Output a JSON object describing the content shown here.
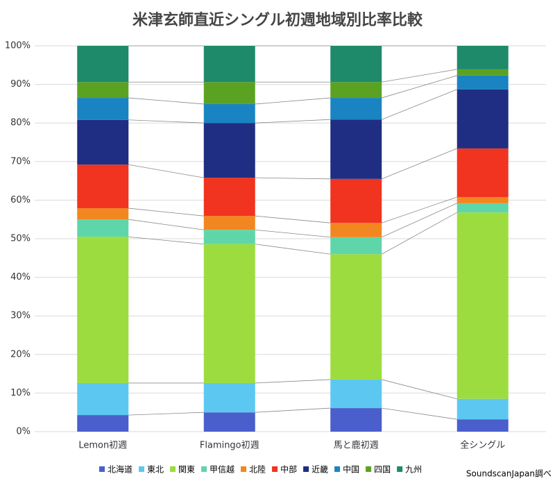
{
  "chart_data": {
    "type": "stacked_bar_100",
    "title": "米津玄師直近シングル初週地域別比率比較",
    "categories": [
      "Lemon初週",
      "Flamingo初週",
      "馬と鹿初週",
      "全シングル"
    ],
    "series": [
      {
        "name": "北海道",
        "color": "#4a5fcc",
        "values": [
          4.3,
          5.0,
          6.1,
          3.2
        ]
      },
      {
        "name": "東北",
        "color": "#5cc8f2",
        "values": [
          8.3,
          7.6,
          7.4,
          5.3
        ]
      },
      {
        "name": "関東",
        "color": "#9ddc3e",
        "values": [
          37.9,
          36.0,
          32.5,
          48.3
        ]
      },
      {
        "name": "甲信越",
        "color": "#5fd6aa",
        "values": [
          4.5,
          3.7,
          4.4,
          2.4
        ]
      },
      {
        "name": "北陸",
        "color": "#f28620",
        "values": [
          2.9,
          3.6,
          3.7,
          1.6
        ]
      },
      {
        "name": "中部",
        "color": "#f0341f",
        "values": [
          11.3,
          9.9,
          11.4,
          12.6
        ]
      },
      {
        "name": "近畿",
        "color": "#1f2e82",
        "values": [
          11.6,
          14.2,
          15.4,
          15.3
        ]
      },
      {
        "name": "中国",
        "color": "#1a84c2",
        "values": [
          5.7,
          4.9,
          5.6,
          3.6
        ]
      },
      {
        "name": "四国",
        "color": "#5ca222",
        "values": [
          4.1,
          5.7,
          4.1,
          1.6
        ]
      },
      {
        "name": "九州",
        "color": "#1f8a6a",
        "values": [
          9.4,
          9.4,
          9.4,
          6.1
        ]
      }
    ],
    "ylim": [
      0,
      100
    ],
    "yticks": [
      {
        "value": 0,
        "label": "0%"
      },
      {
        "value": 10,
        "label": "10%"
      },
      {
        "value": 20,
        "label": "20%"
      },
      {
        "value": 30,
        "label": "30%"
      },
      {
        "value": 40,
        "label": "40%"
      },
      {
        "value": 50,
        "label": "50%"
      },
      {
        "value": 60,
        "label": "60%"
      },
      {
        "value": 70,
        "label": "70%"
      },
      {
        "value": 80,
        "label": "80%"
      },
      {
        "value": 90,
        "label": "90%"
      },
      {
        "value": 100,
        "label": "100%"
      }
    ],
    "grid": true,
    "legend": "bottom",
    "source": "SoundscanJapan調べ"
  }
}
